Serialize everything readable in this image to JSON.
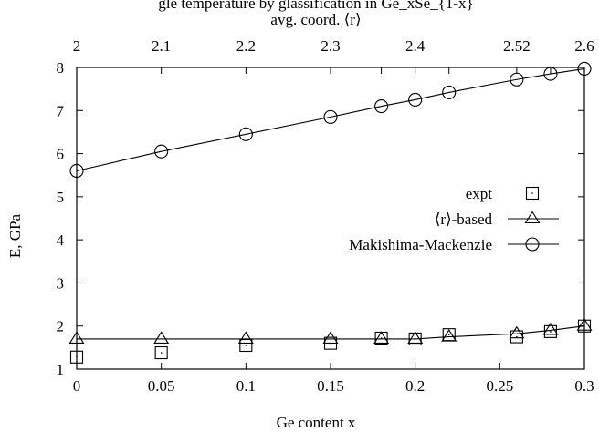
{
  "chart_data": {
    "type": "line",
    "title": "gle temperature by glassification in Ge_xSe_{1-x}",
    "xlabel": "Ge content x",
    "ylabel": "E, GPa",
    "x2label": "avg. coord. ⟨r⟩",
    "xlim": [
      0,
      0.3
    ],
    "ylim": [
      1,
      8
    ],
    "x_ticks": [
      "0",
      "0.05",
      "0.1",
      "0.15",
      "0.2",
      "0.25",
      "0.3"
    ],
    "y_ticks": [
      "1",
      "2",
      "3",
      "4",
      "5",
      "6",
      "7",
      "8"
    ],
    "x2_ticks": [
      {
        "x": 0,
        "label": "2"
      },
      {
        "x": 0.05,
        "label": "2.1"
      },
      {
        "x": 0.1,
        "label": "2.2"
      },
      {
        "x": 0.15,
        "label": "2.3"
      },
      {
        "x": 0.2,
        "label": "2.4"
      },
      {
        "x": 0.26,
        "label": "2.52"
      },
      {
        "x": 0.3,
        "label": "2.6"
      }
    ],
    "x2_minor_ticks": [
      0.18,
      0.22,
      0.28
    ],
    "grid": false,
    "legend_position": "right",
    "series": [
      {
        "name": "expt",
        "marker": "square",
        "line": false,
        "x": [
          0,
          0.05,
          0.1,
          0.15,
          0.18,
          0.2,
          0.22,
          0.26,
          0.28,
          0.3
        ],
        "y": [
          1.28,
          1.38,
          1.55,
          1.6,
          1.72,
          1.7,
          1.8,
          1.75,
          1.87,
          2.0
        ]
      },
      {
        "name": "⟨r⟩-based",
        "marker": "triangle",
        "line": true,
        "x": [
          0,
          0.05,
          0.1,
          0.15,
          0.18,
          0.2,
          0.22,
          0.26,
          0.28,
          0.3
        ],
        "y": [
          1.7,
          1.7,
          1.7,
          1.7,
          1.7,
          1.7,
          1.75,
          1.82,
          1.9,
          2.0
        ]
      },
      {
        "name": "Makishima-Mackenzie",
        "marker": "circle",
        "line": true,
        "x": [
          0,
          0.05,
          0.1,
          0.15,
          0.18,
          0.2,
          0.22,
          0.26,
          0.28,
          0.3
        ],
        "y": [
          5.6,
          6.05,
          6.45,
          6.85,
          7.1,
          7.25,
          7.42,
          7.72,
          7.85,
          7.97
        ]
      }
    ]
  }
}
